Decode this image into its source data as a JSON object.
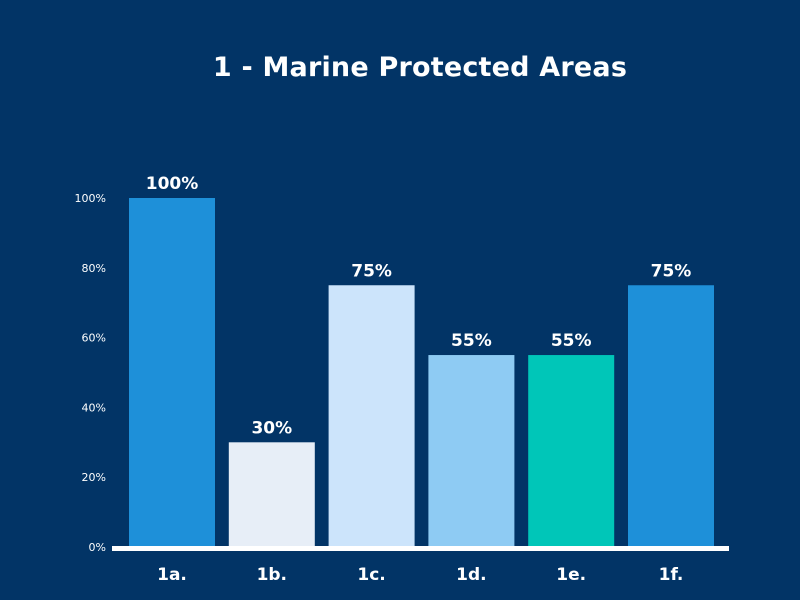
{
  "chart_data": {
    "type": "bar",
    "title": "1 - Marine Protected Areas",
    "xlabel": "",
    "ylabel": "",
    "ylim": [
      0,
      100
    ],
    "yticks": [
      0,
      20,
      40,
      60,
      80,
      100
    ],
    "ytick_labels": [
      "0%",
      "20%",
      "40%",
      "60%",
      "80%",
      "100%"
    ],
    "categories": [
      "1a.",
      "1b.",
      "1c.",
      "1d.",
      "1e.",
      "1f."
    ],
    "values": [
      100,
      30,
      75,
      55,
      55,
      75
    ],
    "data_labels": [
      "100%",
      "30%",
      "75%",
      "55%",
      "55%",
      "75%"
    ],
    "colors": [
      "#1e90d9",
      "#e7eef7",
      "#cce4fb",
      "#8ecbf3",
      "#00c6b8",
      "#1e90d9"
    ],
    "grid": false,
    "legend": "none"
  },
  "theme": {
    "background": "#023466",
    "text": "#ffffff",
    "axis": "#ffffff"
  }
}
